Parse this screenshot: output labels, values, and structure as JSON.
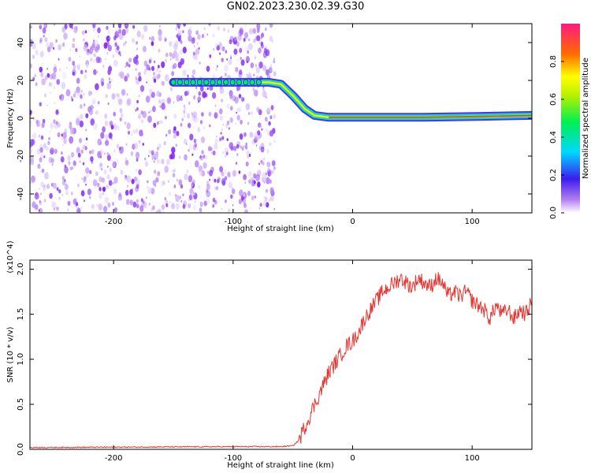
{
  "title": "GN02.2023.230.02.39.G30",
  "colors": {
    "snr_line": "#e8332f",
    "axes": "#000000",
    "background": "#ffffff"
  },
  "chart_data": [
    {
      "type": "heatmap",
      "name": "spectrogram",
      "xlabel": "Height of straight line (km)",
      "ylabel": "Frequency (Hz)",
      "xlim": [
        -270,
        150
      ],
      "ylim": [
        -50,
        50
      ],
      "xticks": [
        -200,
        -100,
        0,
        100
      ],
      "yticks": [
        -40,
        -20,
        0,
        20,
        40
      ],
      "noise_region_x": [
        -270,
        -65
      ],
      "signal_track": [
        {
          "x": -150,
          "y": 19
        },
        {
          "x": -70,
          "y": 19
        },
        {
          "x": -60,
          "y": 18
        },
        {
          "x": -50,
          "y": 12
        },
        {
          "x": -40,
          "y": 5
        },
        {
          "x": -32,
          "y": 1.5
        },
        {
          "x": -20,
          "y": 0.5
        },
        {
          "x": 60,
          "y": 0.5
        },
        {
          "x": 108,
          "y": 1
        },
        {
          "x": 150,
          "y": 1.5
        }
      ],
      "colorbar": {
        "label": "Normalized spectral amplitude",
        "range": [
          0,
          1
        ],
        "ticks": [
          0.0,
          0.2,
          0.4,
          0.6,
          0.8
        ]
      }
    },
    {
      "type": "line",
      "name": "snr",
      "xlabel": "Height of straight line (km)",
      "ylabel": "SNR (10 * v/v)",
      "y_scale_label": "(x10^4)",
      "xlim": [
        -270,
        150
      ],
      "ylim": [
        0,
        2.1
      ],
      "xticks": [
        -200,
        -100,
        0,
        100
      ],
      "yticks": [
        0.0,
        0.5,
        1.0,
        1.5,
        2.0
      ],
      "series": [
        {
          "name": "SNR",
          "x": [
            -270,
            -100,
            -60,
            -50,
            -45,
            -40,
            -35,
            -30,
            -25,
            -20,
            -15,
            -10,
            -5,
            0,
            5,
            10,
            15,
            20,
            25,
            30,
            35,
            40,
            45,
            50,
            55,
            60,
            65,
            70,
            75,
            80,
            85,
            90,
            95,
            100,
            105,
            110,
            115,
            120,
            125,
            130,
            135,
            140,
            145,
            150
          ],
          "y": [
            0.02,
            0.03,
            0.03,
            0.04,
            0.1,
            0.25,
            0.4,
            0.55,
            0.7,
            0.85,
            0.95,
            1.05,
            1.15,
            1.2,
            1.3,
            1.45,
            1.55,
            1.65,
            1.75,
            1.8,
            1.85,
            1.9,
            1.85,
            1.8,
            1.9,
            1.85,
            1.8,
            1.9,
            1.85,
            1.7,
            1.75,
            1.7,
            1.75,
            1.65,
            1.6,
            1.55,
            1.45,
            1.6,
            1.5,
            1.55,
            1.45,
            1.55,
            1.5,
            1.65
          ]
        }
      ]
    }
  ]
}
